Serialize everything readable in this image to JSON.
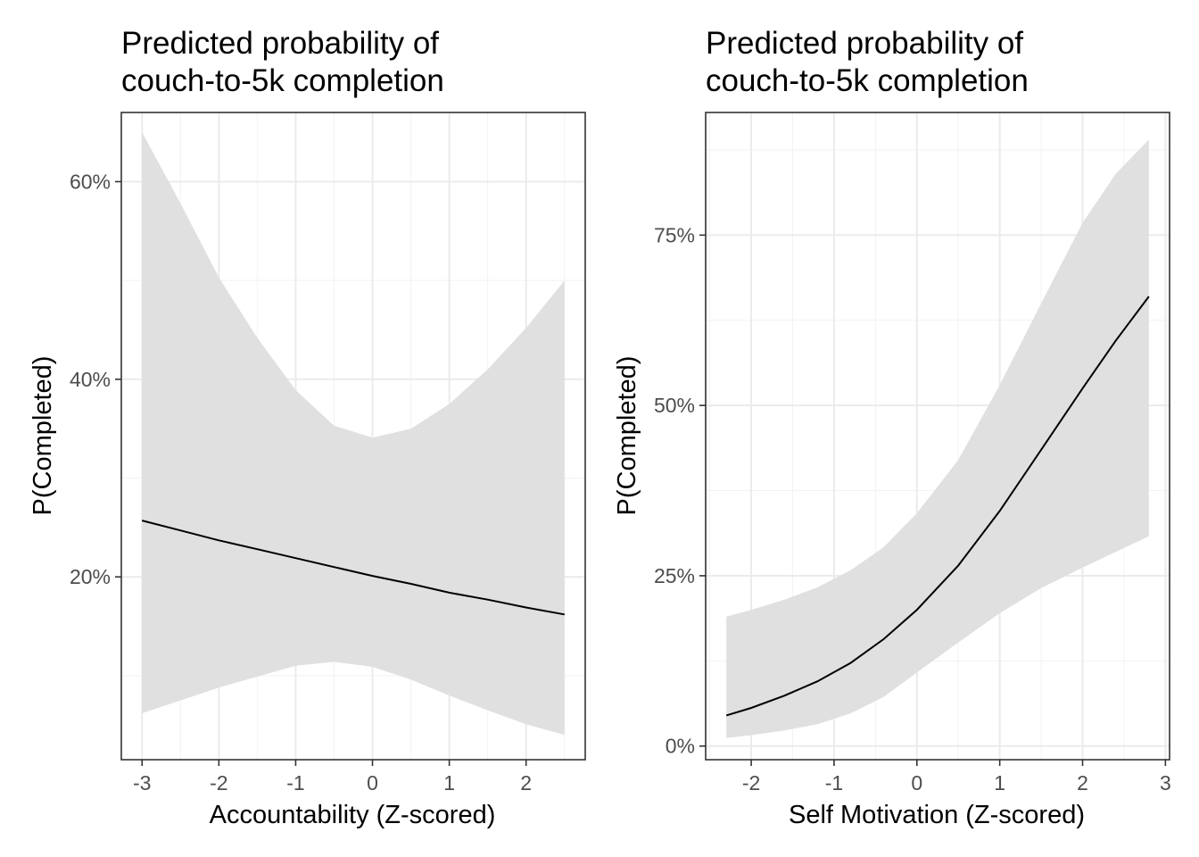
{
  "chart_data": [
    {
      "type": "line",
      "title": [
        "Predicted probability of",
        "couch-to-5k completion"
      ],
      "xlabel": "Accountability (Z-scored)",
      "ylabel": "P(Completed)",
      "xlim": [
        -3.27,
        2.77
      ],
      "ylim": [
        0.015,
        0.67
      ],
      "x_ticks": [
        -3,
        -2,
        -1,
        0,
        1,
        2
      ],
      "x_tick_labels": [
        "-3",
        "-2",
        "-1",
        "0",
        "1",
        "2"
      ],
      "y_ticks": [
        0.2,
        0.4,
        0.6
      ],
      "y_tick_labels": [
        "20%",
        "40%",
        "60%"
      ],
      "grid": true,
      "series": [
        {
          "x": [
            -3,
            -2.5,
            -2,
            -1.5,
            -1,
            -0.5,
            0,
            0.5,
            1,
            1.5,
            2,
            2.5
          ],
          "y": [
            0.257,
            0.247,
            0.237,
            0.228,
            0.219,
            0.21,
            0.201,
            0.193,
            0.184,
            0.177,
            0.169,
            0.162
          ],
          "lower": [
            0.062,
            0.075,
            0.088,
            0.099,
            0.11,
            0.114,
            0.109,
            0.096,
            0.08,
            0.065,
            0.051,
            0.04
          ],
          "upper": [
            0.65,
            0.578,
            0.503,
            0.442,
            0.389,
            0.353,
            0.341,
            0.35,
            0.375,
            0.41,
            0.452,
            0.5
          ]
        }
      ]
    },
    {
      "type": "line",
      "title": [
        "Predicted probability of",
        "couch-to-5k completion"
      ],
      "xlabel": "Self Motivation (Z-scored)",
      "ylabel": "P(Completed)",
      "xlim": [
        -2.55,
        3.05
      ],
      "ylim": [
        -0.02,
        0.93
      ],
      "x_ticks": [
        -2,
        -1,
        0,
        1,
        2,
        3
      ],
      "x_tick_labels": [
        "-2",
        "-1",
        "0",
        "1",
        "2",
        "3"
      ],
      "y_ticks": [
        0,
        0.25,
        0.5,
        0.75
      ],
      "y_tick_labels": [
        "0%",
        "25%",
        "50%",
        "75%"
      ],
      "grid": true,
      "series": [
        {
          "x": [
            -2.3,
            -2.0,
            -1.6,
            -1.2,
            -0.8,
            -0.4,
            0.0,
            0.5,
            1.0,
            1.5,
            2.0,
            2.4,
            2.8
          ],
          "y": [
            0.045,
            0.056,
            0.074,
            0.095,
            0.122,
            0.157,
            0.2,
            0.265,
            0.345,
            0.435,
            0.525,
            0.595,
            0.66
          ],
          "lower": [
            0.012,
            0.016,
            0.023,
            0.032,
            0.048,
            0.072,
            0.108,
            0.152,
            0.195,
            0.232,
            0.262,
            0.285,
            0.308
          ],
          "upper": [
            0.19,
            0.2,
            0.215,
            0.233,
            0.258,
            0.292,
            0.342,
            0.42,
            0.53,
            0.65,
            0.768,
            0.84,
            0.89
          ]
        }
      ]
    }
  ]
}
